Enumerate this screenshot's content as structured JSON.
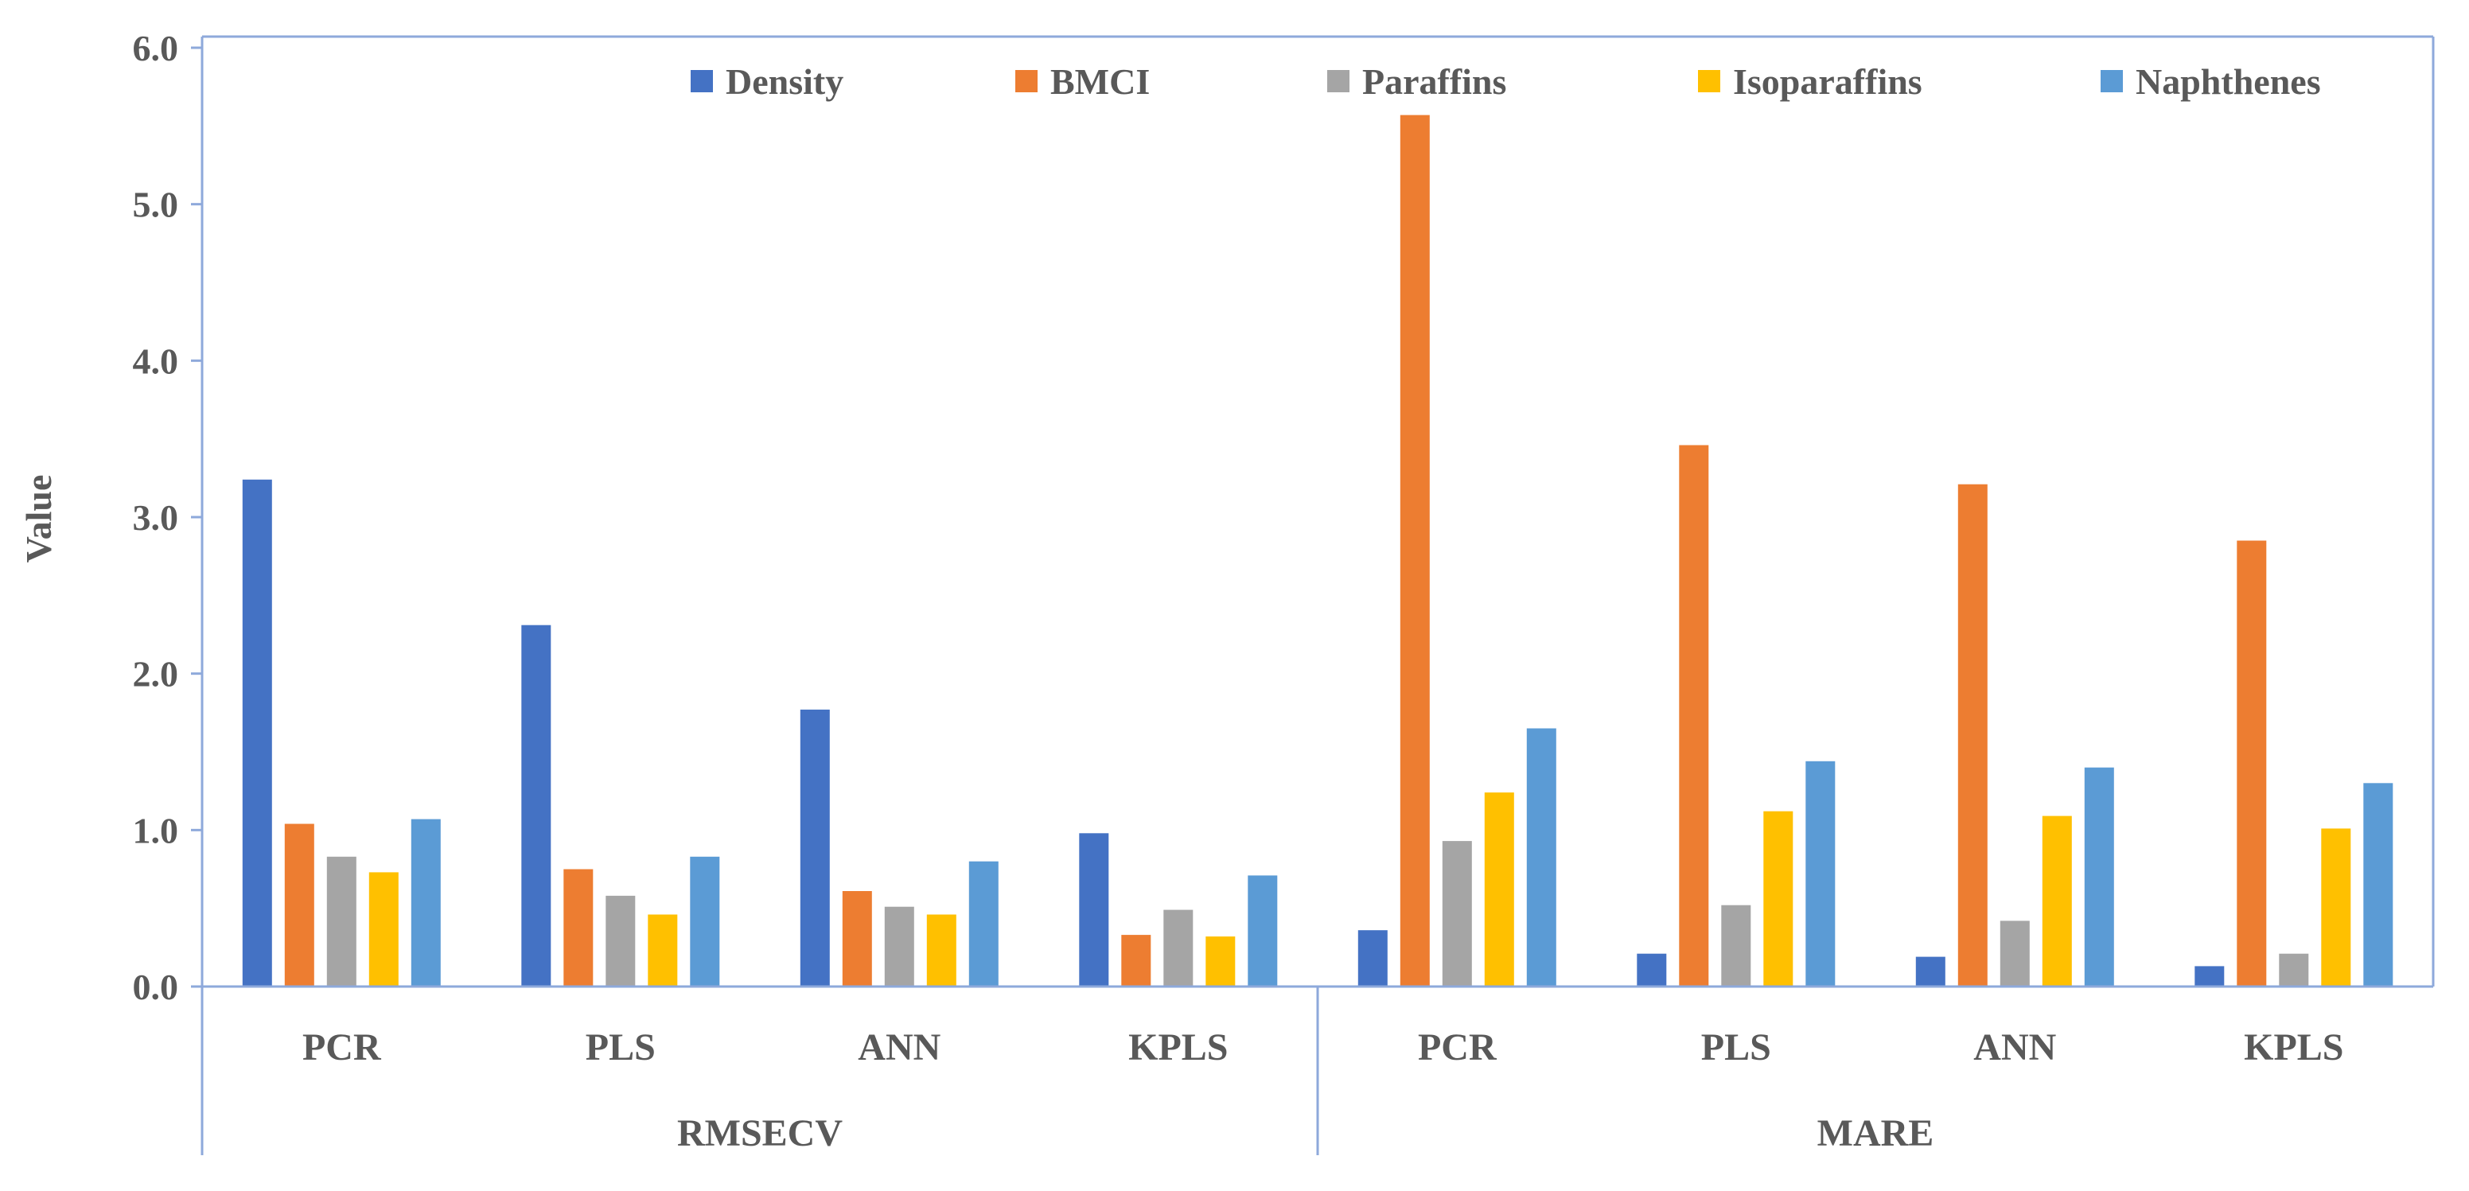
{
  "chart_data": {
    "type": "bar",
    "ylabel": "Value",
    "xlabel": "",
    "ylim": [
      0,
      6
    ],
    "yticks": [
      0,
      1,
      2,
      3,
      4,
      5,
      6
    ],
    "ytick_labels": [
      "0.0",
      "1.0",
      "2.0",
      "3.0",
      "4.0",
      "5.0",
      "6.0"
    ],
    "legend_position": "top-right",
    "grid": false,
    "groups": [
      {
        "label": "RMSECV",
        "categories": [
          "PCR",
          "PLS",
          "ANN",
          "KPLS"
        ]
      },
      {
        "label": "MARE",
        "categories": [
          "PCR",
          "PLS",
          "ANN",
          "KPLS"
        ]
      }
    ],
    "categories": [
      "PCR",
      "PLS",
      "ANN",
      "KPLS",
      "PCR",
      "PLS",
      "ANN",
      "KPLS"
    ],
    "series": [
      {
        "name": "Density",
        "color": "#4472C4",
        "values": [
          3.24,
          2.31,
          1.77,
          0.98,
          0.36,
          0.21,
          0.19,
          0.13
        ]
      },
      {
        "name": "BMCI",
        "color": "#ED7D31",
        "values": [
          1.04,
          0.75,
          0.61,
          0.33,
          5.57,
          3.46,
          3.21,
          2.85
        ]
      },
      {
        "name": "Paraffins",
        "color": "#A5A5A5",
        "values": [
          0.83,
          0.58,
          0.51,
          0.49,
          0.93,
          0.52,
          0.42,
          0.21
        ]
      },
      {
        "name": "Isoparaffins",
        "color": "#FFC000",
        "values": [
          0.73,
          0.46,
          0.46,
          0.32,
          1.24,
          1.12,
          1.09,
          1.01
        ]
      },
      {
        "name": "Naphthenes",
        "color": "#5B9BD5",
        "values": [
          1.07,
          0.83,
          0.8,
          0.71,
          1.65,
          1.44,
          1.4,
          1.3
        ]
      }
    ],
    "axis_color": "#8EA9DB"
  }
}
